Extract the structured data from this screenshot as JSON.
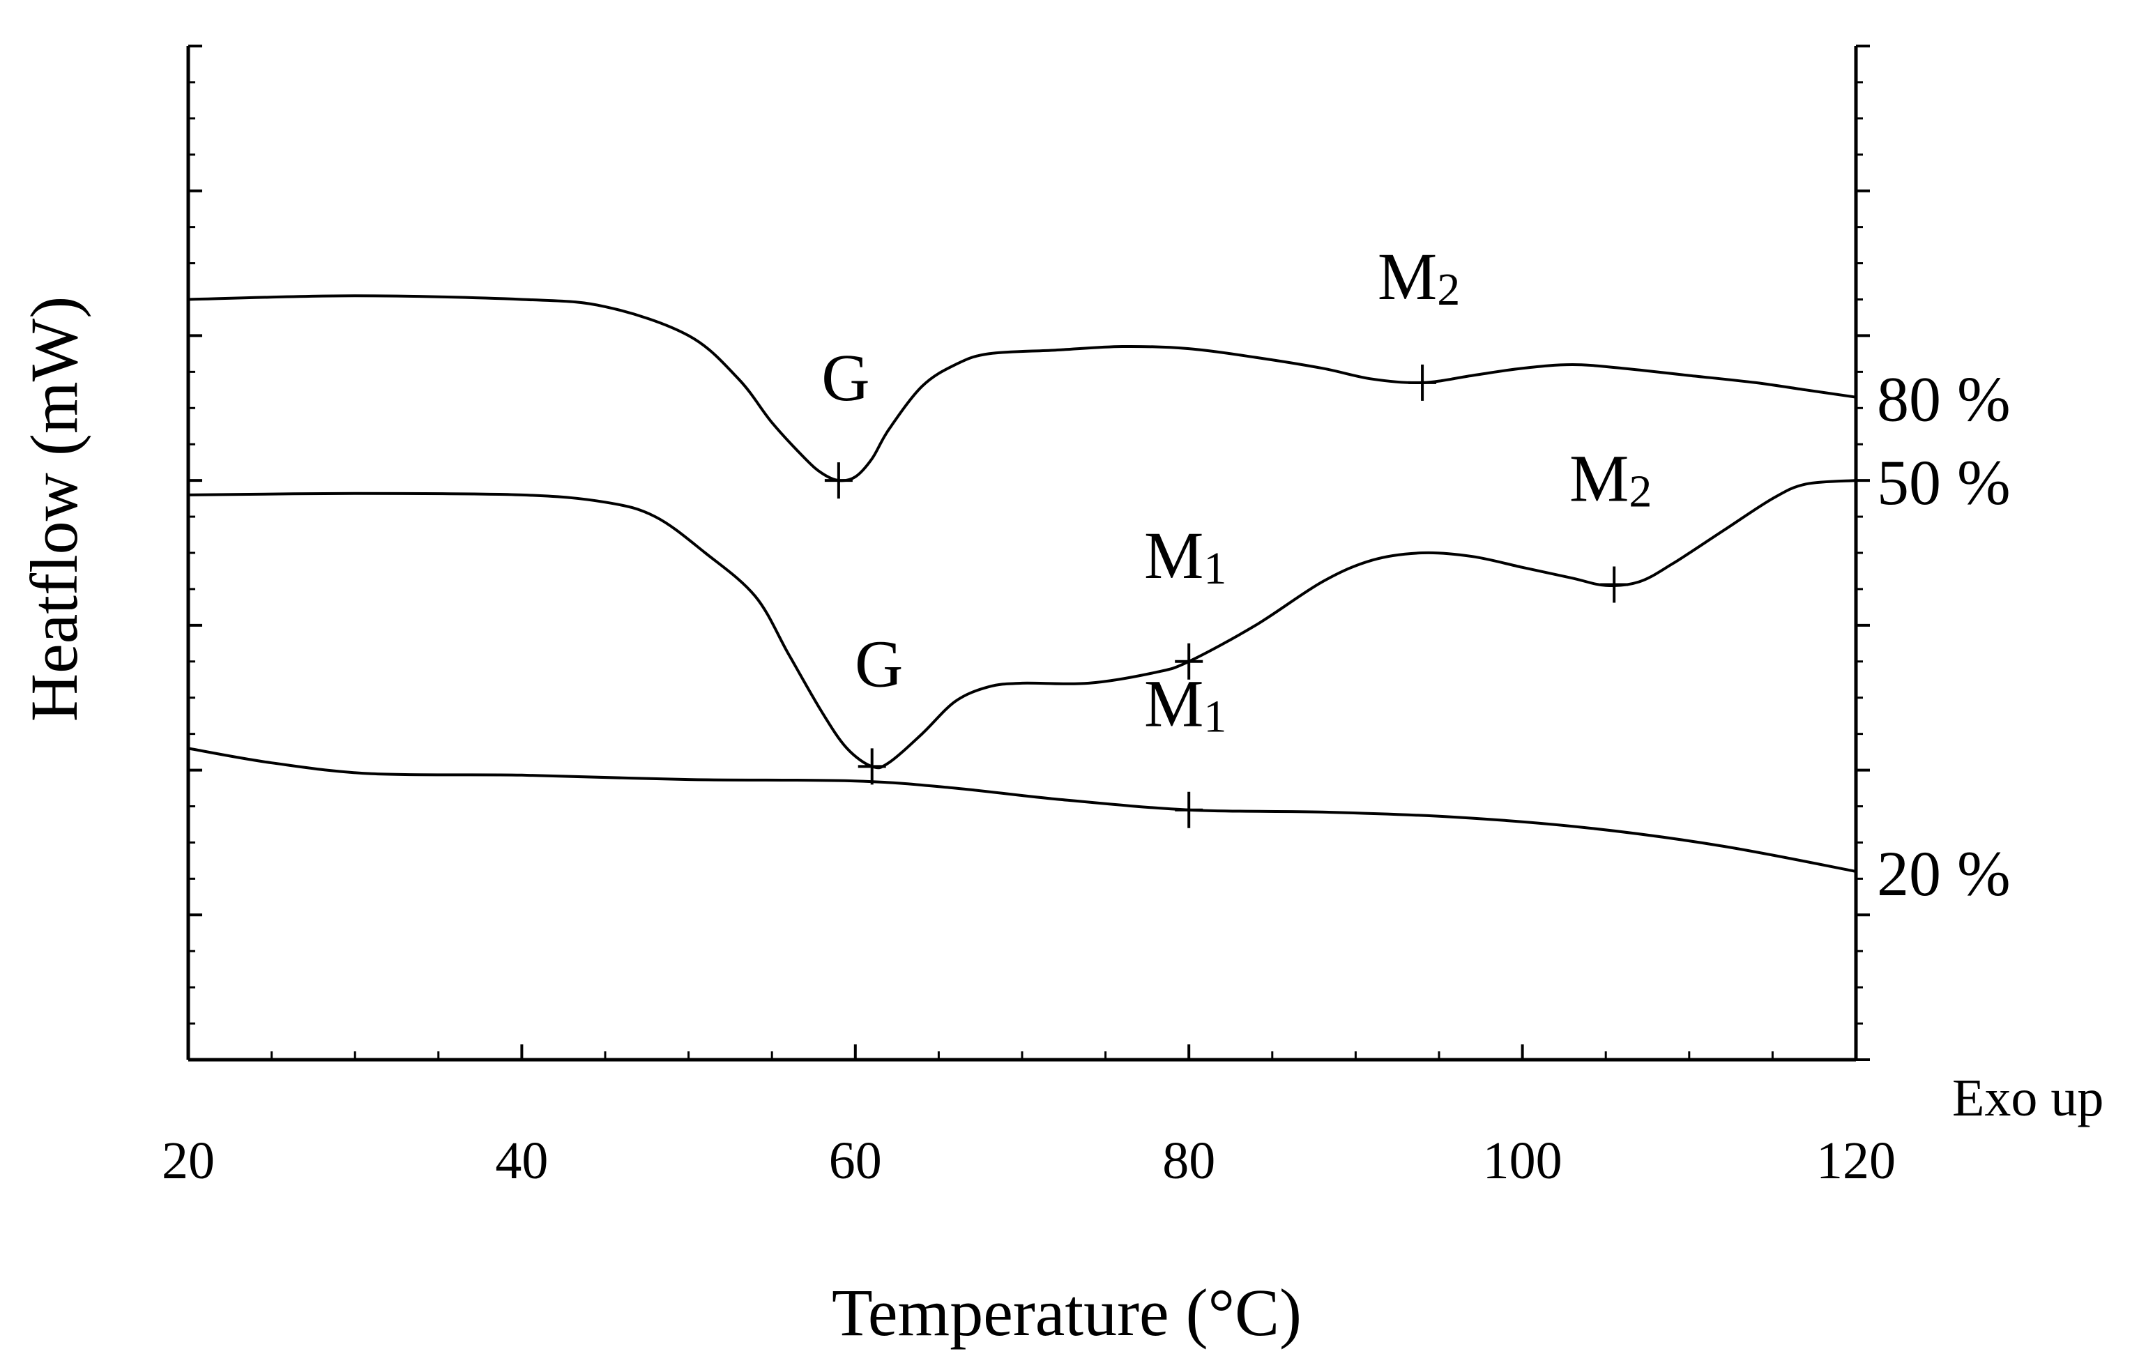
{
  "chart_data": {
    "type": "line",
    "title": "",
    "xlabel": "Temperature (°C)",
    "ylabel": "Heatflow (mW)",
    "xlim": [
      20,
      120
    ],
    "x_ticks": [
      20,
      40,
      60,
      80,
      100,
      120
    ],
    "ylim": [
      0,
      14
    ],
    "grid": false,
    "annotation": "Exo up",
    "series": [
      {
        "name": "80 %",
        "points": [
          [
            20,
            10.5
          ],
          [
            30,
            10.55
          ],
          [
            40,
            10.5
          ],
          [
            45,
            10.4
          ],
          [
            50,
            10.0
          ],
          [
            53,
            9.4
          ],
          [
            55,
            8.8
          ],
          [
            57,
            8.3
          ],
          [
            58,
            8.1
          ],
          [
            59,
            8.0
          ],
          [
            60,
            8.05
          ],
          [
            61,
            8.3
          ],
          [
            62,
            8.7
          ],
          [
            64,
            9.3
          ],
          [
            66,
            9.6
          ],
          [
            68,
            9.75
          ],
          [
            72,
            9.8
          ],
          [
            76,
            9.85
          ],
          [
            80,
            9.82
          ],
          [
            84,
            9.7
          ],
          [
            88,
            9.55
          ],
          [
            91,
            9.4
          ],
          [
            94,
            9.35
          ],
          [
            97,
            9.45
          ],
          [
            100,
            9.55
          ],
          [
            103,
            9.6
          ],
          [
            106,
            9.55
          ],
          [
            110,
            9.45
          ],
          [
            114,
            9.35
          ],
          [
            117,
            9.25
          ],
          [
            120,
            9.15
          ]
        ],
        "markers": [
          {
            "label": "G",
            "x": 59
          },
          {
            "label": "M2",
            "x": 94
          }
        ]
      },
      {
        "name": "50 %",
        "points": [
          [
            20,
            7.8
          ],
          [
            30,
            7.82
          ],
          [
            40,
            7.8
          ],
          [
            45,
            7.7
          ],
          [
            48,
            7.5
          ],
          [
            51,
            7.0
          ],
          [
            54,
            6.4
          ],
          [
            56,
            5.6
          ],
          [
            58,
            4.8
          ],
          [
            59.5,
            4.3
          ],
          [
            61,
            4.05
          ],
          [
            62,
            4.1
          ],
          [
            64,
            4.5
          ],
          [
            66,
            4.95
          ],
          [
            68,
            5.15
          ],
          [
            70,
            5.2
          ],
          [
            74,
            5.2
          ],
          [
            78,
            5.35
          ],
          [
            80,
            5.5
          ],
          [
            84,
            6.0
          ],
          [
            88,
            6.6
          ],
          [
            91,
            6.9
          ],
          [
            94,
            7.0
          ],
          [
            97,
            6.95
          ],
          [
            100,
            6.8
          ],
          [
            103,
            6.65
          ],
          [
            105,
            6.55
          ],
          [
            107,
            6.6
          ],
          [
            109,
            6.85
          ],
          [
            112,
            7.3
          ],
          [
            115,
            7.75
          ],
          [
            117,
            7.95
          ],
          [
            120,
            8.0
          ]
        ],
        "markers": [
          {
            "label": "G",
            "x": 61
          },
          {
            "label": "M1",
            "x": 80
          },
          {
            "label": "M2",
            "x": 105.5
          }
        ]
      },
      {
        "name": "20 %",
        "points": [
          [
            20,
            4.3
          ],
          [
            25,
            4.1
          ],
          [
            31,
            3.95
          ],
          [
            40,
            3.93
          ],
          [
            50,
            3.87
          ],
          [
            60,
            3.85
          ],
          [
            66,
            3.75
          ],
          [
            72,
            3.6
          ],
          [
            80,
            3.45
          ],
          [
            88,
            3.42
          ],
          [
            96,
            3.35
          ],
          [
            104,
            3.2
          ],
          [
            112,
            2.95
          ],
          [
            120,
            2.6
          ]
        ],
        "markers": [
          {
            "label": "M1",
            "x": 80
          }
        ]
      }
    ]
  }
}
